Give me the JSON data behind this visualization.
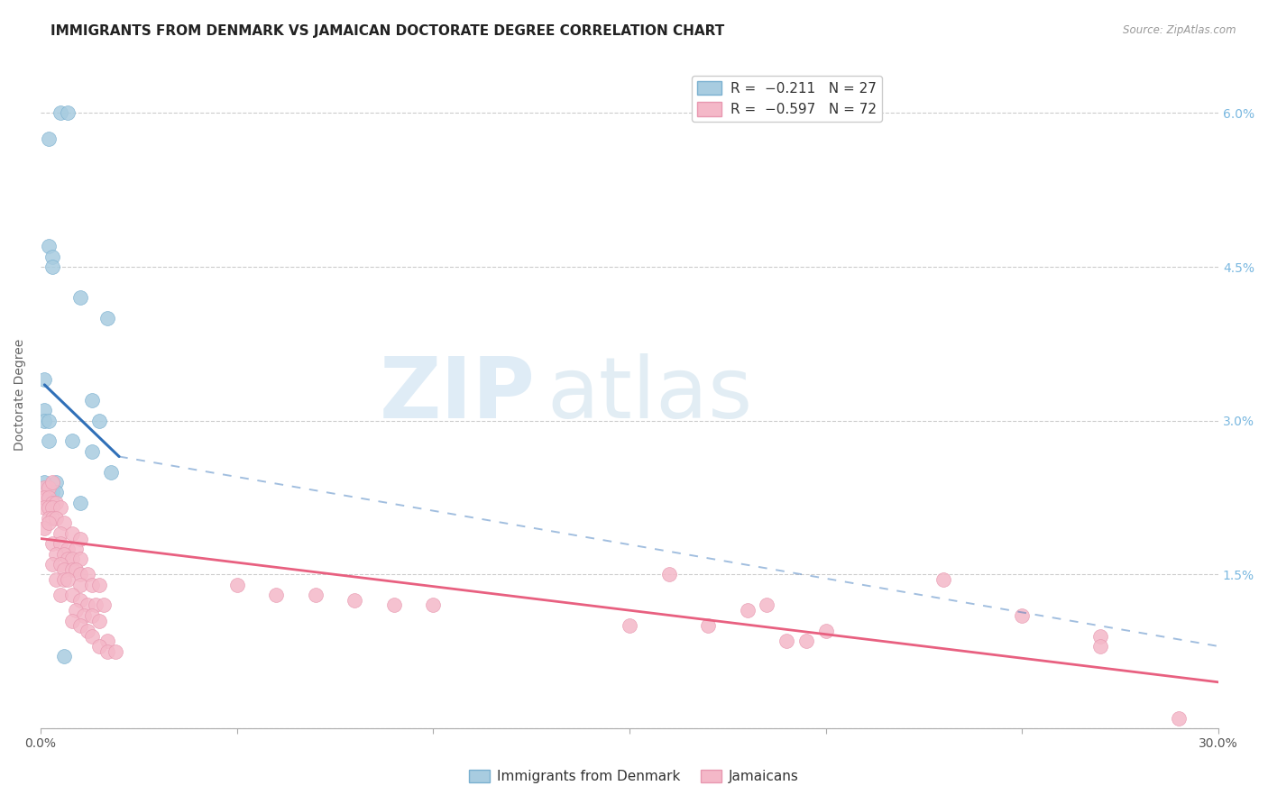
{
  "title": "IMMIGRANTS FROM DENMARK VS JAMAICAN DOCTORATE DEGREE CORRELATION CHART",
  "source": "Source: ZipAtlas.com",
  "ylabel": "Doctorate Degree",
  "x_min": 0.0,
  "x_max": 0.3,
  "y_min": 0.0,
  "y_max": 0.065,
  "y_ticks": [
    0.0,
    0.015,
    0.03,
    0.045,
    0.06
  ],
  "y_tick_labels": [
    "",
    "1.5%",
    "3.0%",
    "4.5%",
    "6.0%"
  ],
  "x_ticks": [
    0.0,
    0.05,
    0.1,
    0.15,
    0.2,
    0.25,
    0.3
  ],
  "blue_color": "#a8cce0",
  "pink_color": "#f4b8c8",
  "blue_edge_color": "#7ab0d0",
  "pink_edge_color": "#e898b0",
  "blue_line_color": "#3070b8",
  "pink_line_color": "#e86080",
  "blue_scatter": [
    [
      0.005,
      0.06
    ],
    [
      0.007,
      0.06
    ],
    [
      0.002,
      0.0575
    ],
    [
      0.002,
      0.047
    ],
    [
      0.003,
      0.046
    ],
    [
      0.003,
      0.045
    ],
    [
      0.01,
      0.042
    ],
    [
      0.017,
      0.04
    ],
    [
      0.001,
      0.034
    ],
    [
      0.013,
      0.032
    ],
    [
      0.001,
      0.031
    ],
    [
      0.001,
      0.03
    ],
    [
      0.002,
      0.03
    ],
    [
      0.015,
      0.03
    ],
    [
      0.002,
      0.028
    ],
    [
      0.008,
      0.028
    ],
    [
      0.013,
      0.027
    ],
    [
      0.018,
      0.025
    ],
    [
      0.001,
      0.024
    ],
    [
      0.004,
      0.024
    ],
    [
      0.002,
      0.023
    ],
    [
      0.003,
      0.023
    ],
    [
      0.004,
      0.023
    ],
    [
      0.002,
      0.022
    ],
    [
      0.003,
      0.022
    ],
    [
      0.01,
      0.022
    ],
    [
      0.006,
      0.007
    ]
  ],
  "pink_scatter": [
    [
      0.001,
      0.0235
    ],
    [
      0.002,
      0.0235
    ],
    [
      0.003,
      0.024
    ],
    [
      0.001,
      0.0225
    ],
    [
      0.002,
      0.0225
    ],
    [
      0.003,
      0.022
    ],
    [
      0.004,
      0.022
    ],
    [
      0.001,
      0.0215
    ],
    [
      0.002,
      0.0215
    ],
    [
      0.003,
      0.0215
    ],
    [
      0.005,
      0.0215
    ],
    [
      0.002,
      0.0205
    ],
    [
      0.003,
      0.0205
    ],
    [
      0.004,
      0.0205
    ],
    [
      0.001,
      0.0195
    ],
    [
      0.002,
      0.02
    ],
    [
      0.006,
      0.02
    ],
    [
      0.005,
      0.019
    ],
    [
      0.008,
      0.019
    ],
    [
      0.01,
      0.0185
    ],
    [
      0.003,
      0.018
    ],
    [
      0.005,
      0.018
    ],
    [
      0.007,
      0.0175
    ],
    [
      0.009,
      0.0175
    ],
    [
      0.004,
      0.017
    ],
    [
      0.006,
      0.017
    ],
    [
      0.007,
      0.0165
    ],
    [
      0.008,
      0.0165
    ],
    [
      0.01,
      0.0165
    ],
    [
      0.003,
      0.016
    ],
    [
      0.005,
      0.016
    ],
    [
      0.006,
      0.0155
    ],
    [
      0.008,
      0.0155
    ],
    [
      0.009,
      0.0155
    ],
    [
      0.01,
      0.015
    ],
    [
      0.012,
      0.015
    ],
    [
      0.004,
      0.0145
    ],
    [
      0.006,
      0.0145
    ],
    [
      0.007,
      0.0145
    ],
    [
      0.01,
      0.014
    ],
    [
      0.013,
      0.014
    ],
    [
      0.015,
      0.014
    ],
    [
      0.05,
      0.014
    ],
    [
      0.06,
      0.013
    ],
    [
      0.07,
      0.013
    ],
    [
      0.08,
      0.0125
    ],
    [
      0.09,
      0.012
    ],
    [
      0.1,
      0.012
    ],
    [
      0.005,
      0.013
    ],
    [
      0.008,
      0.013
    ],
    [
      0.01,
      0.0125
    ],
    [
      0.012,
      0.012
    ],
    [
      0.014,
      0.012
    ],
    [
      0.016,
      0.012
    ],
    [
      0.009,
      0.0115
    ],
    [
      0.011,
      0.011
    ],
    [
      0.013,
      0.011
    ],
    [
      0.015,
      0.0105
    ],
    [
      0.008,
      0.0105
    ],
    [
      0.01,
      0.01
    ],
    [
      0.012,
      0.0095
    ],
    [
      0.013,
      0.009
    ],
    [
      0.017,
      0.0085
    ],
    [
      0.015,
      0.008
    ],
    [
      0.017,
      0.0075
    ],
    [
      0.019,
      0.0075
    ],
    [
      0.15,
      0.01
    ],
    [
      0.16,
      0.015
    ],
    [
      0.17,
      0.01
    ],
    [
      0.18,
      0.0115
    ],
    [
      0.185,
      0.012
    ],
    [
      0.19,
      0.0085
    ],
    [
      0.195,
      0.0085
    ],
    [
      0.2,
      0.0095
    ],
    [
      0.23,
      0.0145
    ],
    [
      0.25,
      0.011
    ],
    [
      0.27,
      0.009
    ],
    [
      0.27,
      0.008
    ],
    [
      0.29,
      0.001
    ]
  ],
  "blue_trend_solid": {
    "x_start": 0.001,
    "y_start": 0.0335,
    "x_end": 0.02,
    "y_end": 0.0265
  },
  "blue_trend_dashed": {
    "x_start": 0.02,
    "y_start": 0.0265,
    "x_end": 0.3,
    "y_end": 0.008
  },
  "pink_trend": {
    "x_start": 0.0,
    "y_start": 0.0185,
    "x_end": 0.3,
    "y_end": 0.0045
  },
  "watermark_zip": "ZIP",
  "watermark_atlas": "atlas",
  "background_color": "#ffffff",
  "grid_color": "#cccccc",
  "title_fontsize": 11,
  "axis_label_fontsize": 10,
  "tick_fontsize": 10,
  "legend_fontsize": 11
}
